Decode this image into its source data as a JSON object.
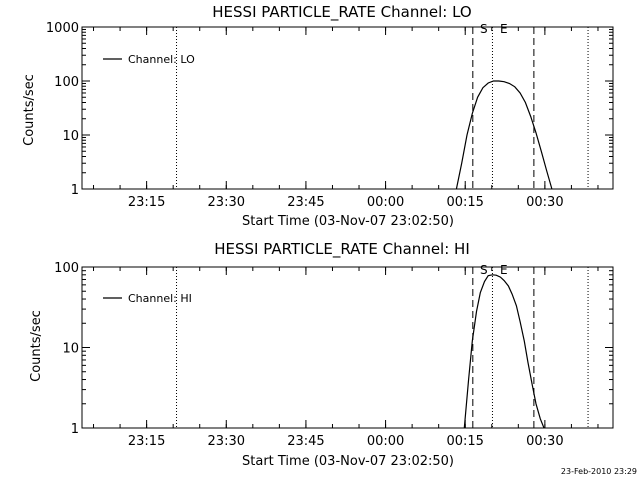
{
  "chart_data": [
    {
      "type": "line",
      "title": "HESSI PARTICLE_RATE Channel: LO",
      "xlabel": "Start Time (03-Nov-07 23:02:50)",
      "ylabel": "Counts/sec",
      "yscale": "log",
      "ylim": [
        1,
        1000
      ],
      "yticks": [
        1,
        10,
        100,
        1000
      ],
      "ytick_labels": [
        "1",
        "10",
        "100",
        "1000"
      ],
      "xticks": [
        "23:15",
        "23:30",
        "23:45",
        "00:00",
        "00:15",
        "00:30"
      ],
      "xtick_minutes": [
        12.17,
        27.17,
        42.17,
        57.17,
        72.17,
        87.17
      ],
      "xlim_minutes": [
        0,
        100
      ],
      "legend": "Channel: LO",
      "legend_position": "top-left",
      "series": [
        {
          "name": "Channel: LO",
          "x": [
            70.5,
            71.5,
            72.5,
            73.5,
            74.5,
            75.5,
            76.5,
            77.5,
            78.5,
            79.5,
            80.5,
            81.5,
            82.5,
            83.5,
            84.5,
            85.5,
            86.5,
            87.5,
            88.5
          ],
          "y": [
            1,
            3,
            10,
            25,
            50,
            75,
            92,
            100,
            100,
            97,
            90,
            78,
            60,
            40,
            22,
            11,
            5,
            2.2,
            1
          ]
        }
      ],
      "dotted_lines_minutes": [
        17.8,
        77.3,
        95.3
      ],
      "dashed_lines_minutes": [
        73.6,
        85.1
      ],
      "markers": [
        "S",
        "E"
      ]
    },
    {
      "type": "line",
      "title": "HESSI PARTICLE_RATE Channel: HI",
      "xlabel": "Start Time (03-Nov-07 23:02:50)",
      "ylabel": "Counts/sec",
      "yscale": "log",
      "ylim": [
        1,
        100
      ],
      "yticks": [
        1,
        10,
        100
      ],
      "ytick_labels": [
        "1",
        "10",
        "100"
      ],
      "xticks": [
        "23:15",
        "23:30",
        "23:45",
        "00:00",
        "00:15",
        "00:30"
      ],
      "xtick_minutes": [
        12.17,
        27.17,
        42.17,
        57.17,
        72.17,
        87.17
      ],
      "xlim_minutes": [
        0,
        100
      ],
      "legend": "Channel: HI",
      "legend_position": "top-left",
      "series": [
        {
          "name": "Channel: HI",
          "x": [
            72.0,
            72.8,
            73.5,
            74.3,
            75.0,
            75.8,
            76.5,
            77.3,
            78.0,
            78.8,
            79.5,
            80.3,
            81.0,
            81.8,
            82.5,
            83.3,
            84.0,
            84.8,
            85.5,
            86.3,
            87.0
          ],
          "y": [
            1,
            4,
            12,
            28,
            48,
            66,
            78,
            80,
            79,
            75,
            68,
            58,
            46,
            33,
            21,
            12,
            6.5,
            3.4,
            2.0,
            1.3,
            1
          ]
        }
      ],
      "dotted_lines_minutes": [
        17.8,
        77.3,
        95.3
      ],
      "dashed_lines_minutes": [
        73.6,
        85.1
      ],
      "markers": [
        "S",
        "E"
      ]
    }
  ],
  "footer_timestamp": "23-Feb-2010 23:29"
}
